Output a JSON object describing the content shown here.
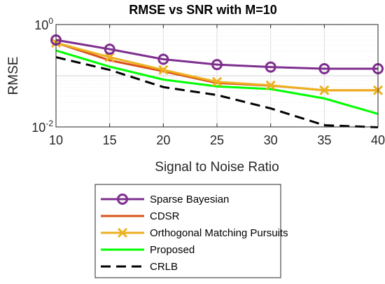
{
  "chart_data": {
    "type": "line",
    "title": "RMSE vs SNR with M=10",
    "xlabel": "Signal to Noise Ratio",
    "ylabel": "RMSE",
    "x": [
      10,
      15,
      20,
      25,
      30,
      35,
      40
    ],
    "xlim": [
      10,
      40
    ],
    "ylim": [
      0.01,
      1
    ],
    "yscale": "log",
    "x_ticks": [
      "10",
      "15",
      "20",
      "25",
      "30",
      "35",
      "40"
    ],
    "y_ticks": [
      {
        "value": 1,
        "base": "10",
        "exp": "0"
      },
      {
        "value": 0.01,
        "base": "10",
        "exp": "-2"
      }
    ],
    "grid": true,
    "legend_position": "bottom",
    "series": [
      {
        "name": "Sparse Bayesian",
        "color": "#7E2F8E",
        "marker": "circle",
        "dash": "solid",
        "values": [
          0.5,
          0.33,
          0.21,
          0.165,
          0.148,
          0.137,
          0.137
        ]
      },
      {
        "name": "CDSR",
        "color": "#D95319",
        "marker": "none",
        "dash": "solid",
        "values": [
          0.44,
          0.2,
          0.122,
          0.072,
          0.064,
          0.052,
          0.052
        ]
      },
      {
        "name": "Orthogonal Matching Pursuits",
        "color": "#EDB120",
        "marker": "x",
        "dash": "solid",
        "values": [
          0.44,
          0.23,
          0.13,
          0.076,
          0.065,
          0.052,
          0.052
        ]
      },
      {
        "name": "Proposed",
        "color": "#00FF00",
        "marker": "none",
        "dash": "solid",
        "values": [
          0.31,
          0.15,
          0.084,
          0.062,
          0.055,
          0.036,
          0.018
        ]
      },
      {
        "name": "CRLB",
        "color": "#000000",
        "marker": "none",
        "dash": "dashed",
        "values": [
          0.23,
          0.13,
          0.06,
          0.042,
          0.023,
          0.0108,
          0.0095
        ]
      }
    ]
  }
}
